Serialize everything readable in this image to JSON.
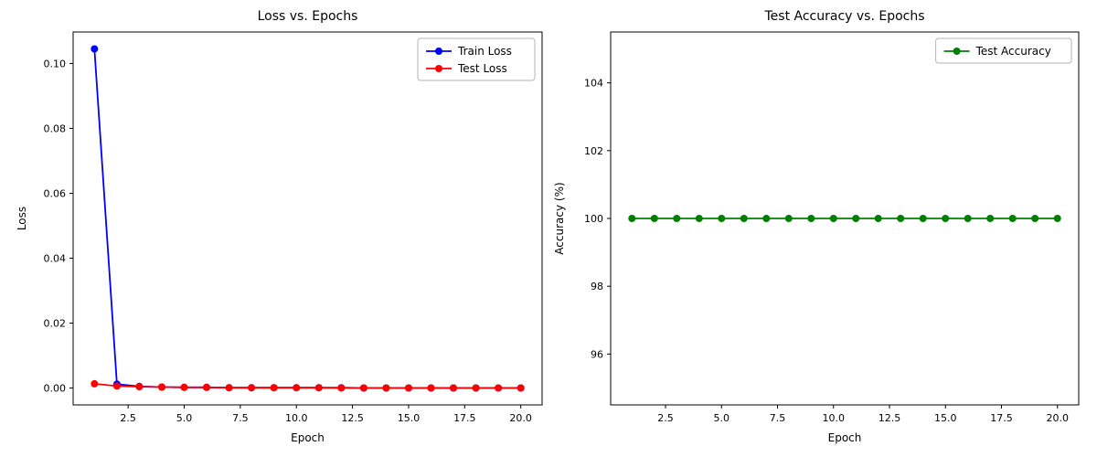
{
  "page": {
    "background": "#ffffff",
    "axis_color": "#000000",
    "legend_border_color": "#b5b5b5"
  },
  "chart_data": [
    {
      "type": "line",
      "title": "Loss vs. Epochs",
      "xlabel": "Epoch",
      "ylabel": "Loss",
      "x": [
        1,
        2,
        3,
        4,
        5,
        6,
        7,
        8,
        9,
        10,
        11,
        12,
        13,
        14,
        15,
        16,
        17,
        18,
        19,
        20
      ],
      "series": [
        {
          "name": "Train Loss",
          "color": "#0000ff",
          "values": [
            0.1045,
            0.0012,
            0.0005,
            0.0003,
            0.0002,
            0.0002,
            0.0001,
            0.0001,
            0.0001,
            0.0001,
            0.0001,
            0.0001,
            0.0,
            0.0,
            0.0,
            0.0,
            0.0,
            0.0,
            0.0,
            0.0
          ]
        },
        {
          "name": "Test Loss",
          "color": "#ff0000",
          "values": [
            0.0013,
            0.0006,
            0.0004,
            0.0003,
            0.0002,
            0.0002,
            0.0001,
            0.0001,
            0.0001,
            0.0001,
            0.0001,
            0.0,
            0.0,
            0.0,
            0.0,
            0.0,
            0.0,
            0.0,
            0.0,
            0.0
          ]
        }
      ],
      "xlim": [
        0.05,
        20.95
      ],
      "ylim": [
        -0.0052,
        0.1097
      ],
      "xticks": [
        2.5,
        5.0,
        7.5,
        10.0,
        12.5,
        15.0,
        17.5,
        20.0
      ],
      "xtick_labels": [
        "2.5",
        "5.0",
        "7.5",
        "10.0",
        "12.5",
        "15.0",
        "17.5",
        "20.0"
      ],
      "yticks": [
        0.0,
        0.02,
        0.04,
        0.06,
        0.08,
        0.1
      ],
      "ytick_labels": [
        "0.00",
        "0.02",
        "0.04",
        "0.06",
        "0.08",
        "0.10"
      ],
      "grid": false,
      "legend_position": "upper right"
    },
    {
      "type": "line",
      "title": "Test Accuracy vs. Epochs",
      "xlabel": "Epoch",
      "ylabel": "Accuracy (%)",
      "x": [
        1,
        2,
        3,
        4,
        5,
        6,
        7,
        8,
        9,
        10,
        11,
        12,
        13,
        14,
        15,
        16,
        17,
        18,
        19,
        20
      ],
      "series": [
        {
          "name": "Test Accuracy",
          "color": "#008000",
          "values": [
            100.0,
            100.0,
            100.0,
            100.0,
            100.0,
            100.0,
            100.0,
            100.0,
            100.0,
            100.0,
            100.0,
            100.0,
            100.0,
            100.0,
            100.0,
            100.0,
            100.0,
            100.0,
            100.0,
            100.0
          ]
        }
      ],
      "xlim": [
        0.05,
        20.95
      ],
      "ylim": [
        94.5,
        105.5
      ],
      "xticks": [
        2.5,
        5.0,
        7.5,
        10.0,
        12.5,
        15.0,
        17.5,
        20.0
      ],
      "xtick_labels": [
        "2.5",
        "5.0",
        "7.5",
        "10.0",
        "12.5",
        "15.0",
        "17.5",
        "20.0"
      ],
      "yticks": [
        96,
        98,
        100,
        102,
        104
      ],
      "ytick_labels": [
        "96",
        "98",
        "100",
        "102",
        "104"
      ],
      "grid": false,
      "legend_position": "upper right"
    }
  ]
}
